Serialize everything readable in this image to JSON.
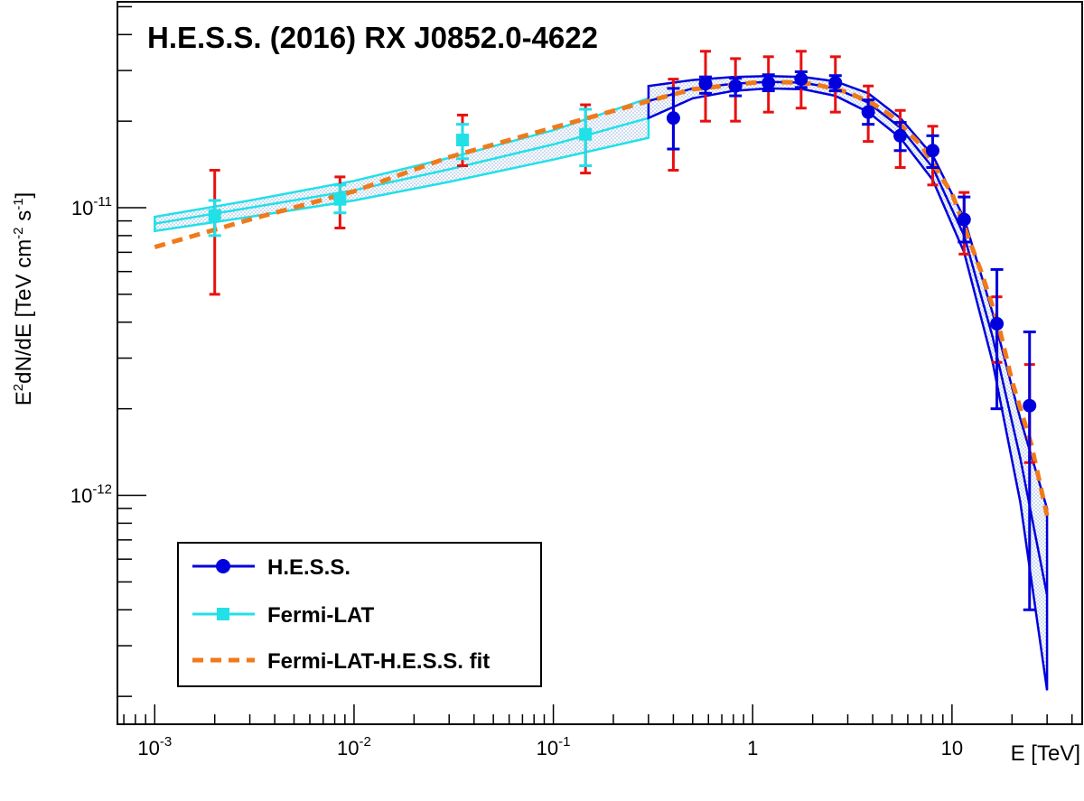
{
  "chart_data": {
    "type": "scatter",
    "title": "H.E.S.S. (2016) RX J0852.0-4622",
    "xlabel": "E [TeV]",
    "ylabel_parts": {
      "p1": "E",
      "sup1": "2",
      "p2": "dN/dE [TeV cm",
      "sup2": "-2",
      "p3": " s",
      "sup3": "-1",
      "p4": "]"
    },
    "x_scale": "log",
    "y_scale": "log",
    "xlim": [
      0.00065,
      45
    ],
    "ylim": [
      1.6e-13,
      5.2e-11
    ],
    "x_tick_labels": [
      {
        "value": 0.001,
        "base": "10",
        "exp": "-3"
      },
      {
        "value": 0.01,
        "base": "10",
        "exp": "-2"
      },
      {
        "value": 0.1,
        "base": "10",
        "exp": "-1"
      },
      {
        "value": 1,
        "text": "1"
      },
      {
        "value": 10,
        "text": "10"
      }
    ],
    "y_tick_labels": [
      {
        "value": 1e-11,
        "base": "10",
        "exp": "-11"
      },
      {
        "value": 1e-12,
        "base": "10",
        "exp": "-12"
      }
    ],
    "legend": {
      "position": "bottom-left",
      "entries": [
        {
          "label": "H.E.S.S.",
          "color": "#0000dd",
          "marker": "circle"
        },
        {
          "label": "Fermi-LAT",
          "color": "#22e0e8",
          "marker": "square"
        },
        {
          "label": "Fermi-LAT-H.E.S.S. fit",
          "color": "#f07a1a",
          "marker": "dashed-line"
        }
      ]
    },
    "series": [
      {
        "name": "Fermi-LAT",
        "color": "#22e0e8",
        "marker": "square",
        "points": [
          {
            "x": 0.002,
            "y": 9.4e-12,
            "stat_lo": 8e-12,
            "stat_hi": 1.06e-11,
            "sys_lo": 5e-12,
            "sys_hi": 1.35e-11
          },
          {
            "x": 0.0085,
            "y": 1.07e-11,
            "stat_lo": 9.6e-12,
            "stat_hi": 1.2e-11,
            "sys_lo": 8.5e-12,
            "sys_hi": 1.28e-11
          },
          {
            "x": 0.035,
            "y": 1.72e-11,
            "stat_lo": 1.48e-11,
            "stat_hi": 1.95e-11,
            "sys_lo": 1.4e-11,
            "sys_hi": 2.1e-11
          },
          {
            "x": 0.145,
            "y": 1.8e-11,
            "stat_lo": 1.4e-11,
            "stat_hi": 2.2e-11,
            "sys_lo": 1.32e-11,
            "sys_hi": 2.28e-11
          }
        ],
        "band": {
          "x": [
            0.001,
            0.003,
            0.01,
            0.03,
            0.1,
            0.3
          ],
          "lower": [
            8.3e-12,
            9.3e-12,
            1.06e-11,
            1.23e-11,
            1.47e-11,
            1.75e-11
          ],
          "upper": [
            9.3e-12,
            1.06e-11,
            1.24e-11,
            1.49e-11,
            1.86e-11,
            2.4e-11
          ],
          "center": [
            8.8e-12,
            1e-11,
            1.15e-11,
            1.36e-11,
            1.66e-11,
            2.05e-11
          ]
        }
      },
      {
        "name": "H.E.S.S.",
        "color": "#0000dd",
        "marker": "circle",
        "points": [
          {
            "x": 0.4,
            "y": 2.05e-11,
            "stat_lo": 1.6e-11,
            "stat_hi": 2.6e-11,
            "sys_lo": 1.35e-11,
            "sys_hi": 2.8e-11
          },
          {
            "x": 0.58,
            "y": 2.7e-11,
            "stat_lo": 2.5e-11,
            "stat_hi": 2.85e-11,
            "sys_lo": 2e-11,
            "sys_hi": 3.5e-11
          },
          {
            "x": 0.82,
            "y": 2.65e-11,
            "stat_lo": 2.45e-11,
            "stat_hi": 2.82e-11,
            "sys_lo": 2e-11,
            "sys_hi": 3.3e-11
          },
          {
            "x": 1.2,
            "y": 2.72e-11,
            "stat_lo": 2.55e-11,
            "stat_hi": 2.9e-11,
            "sys_lo": 2.15e-11,
            "sys_hi": 3.35e-11
          },
          {
            "x": 1.75,
            "y": 2.8e-11,
            "stat_lo": 2.62e-11,
            "stat_hi": 2.97e-11,
            "sys_lo": 2.22e-11,
            "sys_hi": 3.5e-11
          },
          {
            "x": 2.6,
            "y": 2.72e-11,
            "stat_lo": 2.55e-11,
            "stat_hi": 2.88e-11,
            "sys_lo": 2.15e-11,
            "sys_hi": 3.35e-11
          },
          {
            "x": 3.8,
            "y": 2.15e-11,
            "stat_lo": 1.95e-11,
            "stat_hi": 2.37e-11,
            "sys_lo": 1.7e-11,
            "sys_hi": 2.65e-11
          },
          {
            "x": 5.5,
            "y": 1.78e-11,
            "stat_lo": 1.58e-11,
            "stat_hi": 1.98e-11,
            "sys_lo": 1.38e-11,
            "sys_hi": 2.18e-11
          },
          {
            "x": 8.0,
            "y": 1.58e-11,
            "stat_lo": 1.38e-11,
            "stat_hi": 1.78e-11,
            "sys_lo": 1.2e-11,
            "sys_hi": 1.92e-11
          },
          {
            "x": 11.5,
            "y": 9.1e-12,
            "stat_lo": 7.6e-12,
            "stat_hi": 1.09e-11,
            "sys_lo": 6.9e-12,
            "sys_hi": 1.13e-11
          },
          {
            "x": 16.8,
            "y": 3.95e-12,
            "stat_lo": 2e-12,
            "stat_hi": 6.1e-12,
            "sys_lo": 2.9e-12,
            "sys_hi": 4.9e-12
          },
          {
            "x": 24.5,
            "y": 2.05e-12,
            "stat_lo": 4e-13,
            "stat_hi": 3.7e-12,
            "sys_lo": 1.3e-12,
            "sys_hi": 2.85e-12
          }
        ],
        "band": {
          "x": [
            0.3,
            0.5,
            0.8,
            1.2,
            1.8,
            2.6,
            3.8,
            5.5,
            8,
            11.5,
            16,
            22,
            30
          ],
          "lower": [
            2.05e-11,
            2.4e-11,
            2.55e-11,
            2.6e-11,
            2.58e-11,
            2.45e-11,
            2.15e-11,
            1.75e-11,
            1.25e-11,
            7e-12,
            2.9e-12,
            9.5e-13,
            2.1e-13
          ],
          "upper": [
            2.65e-11,
            2.78e-11,
            2.85e-11,
            2.87e-11,
            2.85e-11,
            2.75e-11,
            2.5e-11,
            2.05e-11,
            1.52e-11,
            9.2e-12,
            4.3e-12,
            1.85e-12,
            9e-13
          ],
          "center": [
            2.35e-11,
            2.6e-11,
            2.7e-11,
            2.74e-11,
            2.72e-11,
            2.6e-11,
            2.32e-11,
            1.9e-11,
            1.38e-11,
            8e-12,
            3.55e-12,
            1.35e-12,
            4.5e-13
          ]
        }
      },
      {
        "name": "Fermi-LAT-H.E.S.S. fit",
        "color": "#f07a1a",
        "marker": "dashed-line",
        "curve": {
          "x": [
            0.001,
            0.003,
            0.01,
            0.03,
            0.1,
            0.3,
            0.5,
            1,
            1.5,
            2,
            3,
            4,
            5,
            7,
            10,
            14,
            17,
            20,
            25,
            30
          ],
          "y": [
            7.3e-12,
            9.1e-12,
            1.14e-11,
            1.5e-11,
            1.9e-11,
            2.35e-11,
            2.58e-11,
            2.72e-11,
            2.73e-11,
            2.7e-11,
            2.52e-11,
            2.3e-11,
            2.08e-11,
            1.65e-11,
            1.12e-11,
            6e-12,
            4e-12,
            2.5e-12,
            1.5e-12,
            8.5e-13
          ]
        }
      }
    ]
  }
}
